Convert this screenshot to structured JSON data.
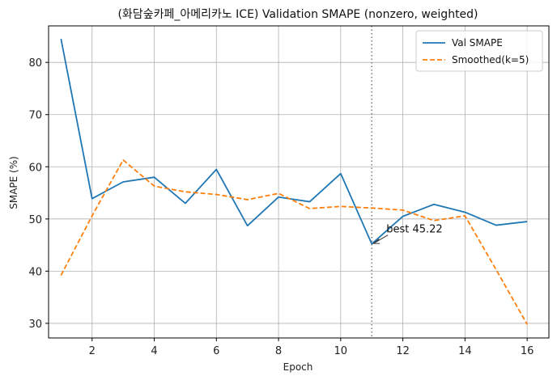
{
  "chart_data": {
    "type": "line",
    "title": "(화담숲카페_아메리카노 ICE) Validation SMAPE (nonzero, weighted)",
    "xlabel": "Epoch",
    "ylabel": "SMAPE (%)",
    "xlim": [
      0.6,
      16.7
    ],
    "ylim": [
      27.2,
      87.0
    ],
    "xticks": [
      2,
      4,
      6,
      8,
      10,
      12,
      14,
      16
    ],
    "yticks": [
      30,
      40,
      50,
      60,
      70,
      80
    ],
    "grid": true,
    "legend_position": "top-right",
    "x": [
      1,
      2,
      3,
      4,
      5,
      6,
      7,
      8,
      9,
      10,
      11,
      12,
      13,
      14,
      15,
      16
    ],
    "series": [
      {
        "name": "Val SMAPE",
        "style": "solid",
        "color": "#1f77b4",
        "values": [
          84.5,
          53.9,
          57.1,
          58.0,
          53.0,
          59.5,
          48.7,
          54.2,
          53.3,
          58.7,
          45.22,
          50.5,
          52.8,
          51.3,
          48.8,
          49.5
        ]
      },
      {
        "name": "Smoothed(k=5)",
        "style": "dashed",
        "color": "#ff7f0e",
        "values": [
          39.2,
          50.6,
          61.3,
          56.3,
          55.2,
          54.7,
          53.7,
          54.9,
          52.0,
          52.4,
          52.1,
          51.7,
          49.7,
          50.6,
          40.3,
          29.8
        ]
      }
    ],
    "vline": {
      "x": 11,
      "style": "dotted",
      "color": "#808080"
    },
    "annotation": {
      "text": "best 45.22",
      "x": 11,
      "y": 45.22
    }
  }
}
